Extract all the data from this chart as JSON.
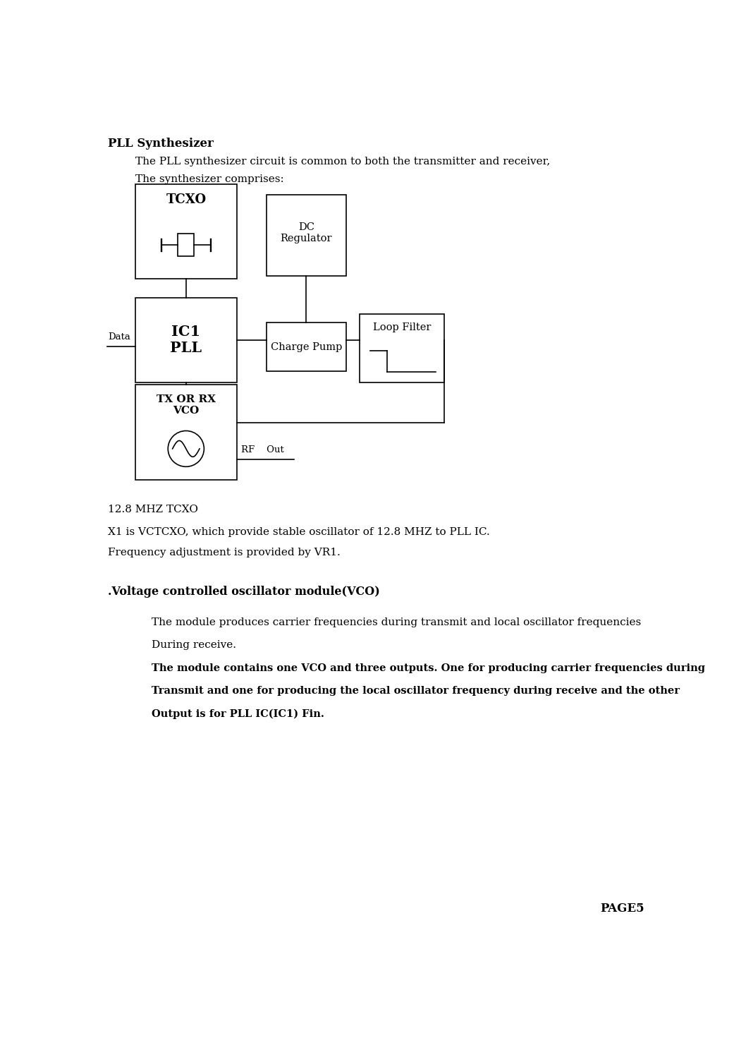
{
  "title": "PLL Synthesizer",
  "line1": "The PLL synthesizer circuit is common to both the transmitter and receiver,",
  "line2": "The synthesizer comprises:",
  "page": "PAGE5",
  "bg_color": "#ffffff",
  "text_color": "#000000",
  "tcxo_label": "TCXO",
  "dc_reg_label": "DC\nRegulator",
  "ic1_label": "IC1\nPLL",
  "charge_pump_label": "Charge Pump",
  "loop_filter_label": "Loop Filter",
  "vco_label": "TX OR RX\nVCO",
  "data_label": "Data",
  "rf_out_label": "RF    Out",
  "section2_heading": ".Voltage controlled oscillator module(VCO)",
  "tcxo_note1": "12.8 MHZ TCXO",
  "tcxo_note2": "X1 is VCTCXO, which provide stable oscillator of 12.8 MHZ to PLL IC.",
  "tcxo_note3": "Frequency adjustment is provided by VR1.",
  "vco_para1": "The module produces carrier frequencies during transmit and local oscillator frequencies",
  "vco_para2": "During receive.",
  "vco_para3": "The module contains one VCO and three outputs. One for producing carrier frequencies during",
  "vco_para4": "Transmit and one for producing the local oscillator frequency during receive and the other",
  "vco_para5": "Output is for PLL IC(IC1) Fin.",
  "fig_width": 10.41,
  "fig_height": 14.78,
  "lw": 1.2
}
